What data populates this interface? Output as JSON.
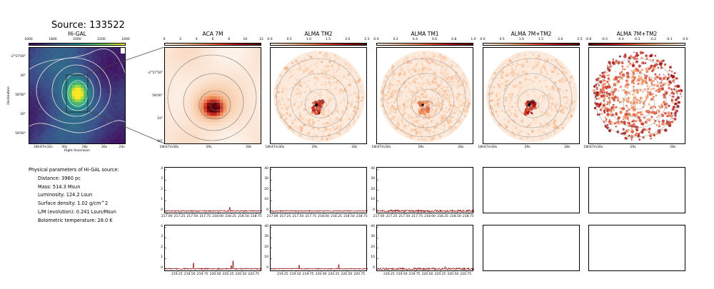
{
  "source_title": "Source: 133522",
  "colors": {
    "hot": [
      "#fdf2ea",
      "#f7c9a6",
      "#ee8c5a",
      "#d8412b",
      "#9c0f12",
      "#5a0008"
    ],
    "viridis": [
      "#440154",
      "#3b528b",
      "#21918c",
      "#5ec962",
      "#fde725"
    ],
    "contour": "#c8c8c8",
    "spectrum": "#8b0000"
  },
  "chart_data": [
    {
      "type": "heatmap",
      "name": "hi-gal",
      "title": "Hi-GAL",
      "colorbar_ticks": [
        "1600",
        "1800",
        "2000",
        "2200",
        "2400"
      ],
      "x_ticks": [
        "18h47m32s",
        "30s",
        "28s",
        "26s",
        "24s"
      ],
      "y_ticks": [
        "-2°57'00\"",
        "30\"",
        "58'00\"",
        "30\"",
        "59'00\""
      ],
      "xlabel": "Right Ascension",
      "ylabel": "Declination"
    },
    {
      "type": "heatmap",
      "name": "aca-7m",
      "title": "ACA 7M",
      "colorbar_ticks": [
        "0",
        "2",
        "4",
        "6",
        "8",
        "10",
        "12"
      ],
      "x_ticks": [
        "18h47m30s",
        "29s",
        "28s"
      ],
      "y_ticks": [
        "-2°57'50\"",
        "58'00\"",
        "10\"",
        "20\""
      ]
    },
    {
      "type": "heatmap",
      "name": "alma-tm2",
      "title": "ALMA TM2",
      "colorbar_ticks": [
        "0.0",
        "0.5",
        "1.0",
        "1.5",
        "2.0",
        "2.5"
      ],
      "x_ticks": [
        "18h47m30s",
        "29s",
        "28s"
      ]
    },
    {
      "type": "heatmap",
      "name": "alma-tm1",
      "title": "ALMA TM1",
      "colorbar_ticks": [
        "0.0",
        "0.2",
        "0.4",
        "0.6",
        "0.8",
        "1.0"
      ],
      "x_ticks": [
        "18h47m30s",
        "29s",
        "28s"
      ]
    },
    {
      "type": "heatmap",
      "name": "alma-7m-tm2",
      "title": "ALMA 7M+TM2",
      "colorbar_ticks": [
        "0.0",
        "0.5",
        "1.0",
        "1.5",
        "2.0",
        "2.5"
      ],
      "x_ticks": [
        "18h47m30s",
        "29s",
        "28s"
      ]
    },
    {
      "type": "heatmap",
      "name": "alma-7m-tm2-negative",
      "title": "ALMA 7M+TM2",
      "colorbar_ticks": [
        "-0.6",
        "-0.5",
        "-0.4",
        "-0.3",
        "-0.2",
        "-0.1",
        "0.0"
      ],
      "x_ticks": [
        "18h47m30s",
        "29s",
        "28s"
      ]
    },
    {
      "type": "line",
      "name": "spectrum-top-aca",
      "x_ticks": [
        "217.00",
        "217.25",
        "217.50",
        "217.75",
        "218.00",
        "218.25",
        "218.50",
        "218.75"
      ],
      "y_ticks": [
        "0",
        "1",
        "2",
        "3",
        "4"
      ],
      "xlim": [
        216.95,
        218.85
      ],
      "ylim": [
        -0.3,
        4.2
      ],
      "baseline": 0.0,
      "noise": 0.05,
      "peaks": [
        {
          "x": 218.22,
          "y": 0.35
        }
      ]
    },
    {
      "type": "line",
      "name": "spectrum-top-tm2",
      "x_ticks": [
        "217.00",
        "217.25",
        "217.50",
        "217.75",
        "218.00",
        "218.25",
        "218.50",
        "218.75"
      ],
      "y_ticks": [
        "0",
        "10",
        "20",
        "30",
        "40"
      ],
      "xlim": [
        216.95,
        218.85
      ],
      "ylim": [
        -3,
        42
      ],
      "baseline": 0.0,
      "noise": 0.4,
      "peaks": []
    },
    {
      "type": "line",
      "name": "spectrum-top-tm1",
      "x_ticks": [
        "217.00",
        "217.25",
        "217.50",
        "217.75",
        "218.00",
        "218.25",
        "218.50",
        "218.75"
      ],
      "y_ticks": [
        "0",
        "10",
        "20",
        "30",
        "40"
      ],
      "xlim": [
        216.95,
        218.85
      ],
      "ylim": [
        -3,
        42
      ],
      "baseline": 0.0,
      "noise": 0.9,
      "peaks": []
    },
    {
      "type": "line",
      "name": "spectrum-bottom-aca",
      "x_ticks": [
        "219.25",
        "219.50",
        "219.75",
        "220.00",
        "220.25",
        "220.50",
        "220.75"
      ],
      "y_ticks": [
        "0",
        "1",
        "2",
        "3",
        "4"
      ],
      "xlim": [
        219.0,
        220.9
      ],
      "ylim": [
        -0.3,
        4.2
      ],
      "baseline": 0.0,
      "noise": 0.05,
      "peaks": [
        {
          "x": 219.56,
          "y": 0.55
        },
        {
          "x": 220.33,
          "y": 0.75
        },
        {
          "x": 220.3,
          "y": 0.3
        }
      ]
    },
    {
      "type": "line",
      "name": "spectrum-bottom-tm2",
      "x_ticks": [
        "219.25",
        "219.50",
        "219.75",
        "220.00",
        "220.25",
        "220.50",
        "220.75"
      ],
      "y_ticks": [
        "0",
        "10",
        "20",
        "30",
        "40"
      ],
      "xlim": [
        219.0,
        220.9
      ],
      "ylim": [
        -3,
        42
      ],
      "baseline": 0.0,
      "noise": 0.4,
      "peaks": [
        {
          "x": 219.56,
          "y": 3.5
        },
        {
          "x": 220.33,
          "y": 4.0
        }
      ]
    },
    {
      "type": "line",
      "name": "spectrum-bottom-tm1",
      "x_ticks": [
        "219.25",
        "219.50",
        "219.75",
        "220.00",
        "220.25",
        "220.50",
        "220.75"
      ],
      "y_ticks": [
        "0",
        "10",
        "20",
        "30",
        "40"
      ],
      "xlim": [
        219.0,
        220.9
      ],
      "ylim": [
        -3,
        42
      ],
      "baseline": 0.0,
      "noise": 0.9,
      "peaks": [
        {
          "x": 220.33,
          "y": 2.0
        }
      ]
    }
  ],
  "params": {
    "heading": "Physical parameters of Hi-GAL source:",
    "items": [
      "Distance: 3960 pc",
      "Mass: 514.3 Msun",
      "Luminosity: 124.2 Lsun",
      "Surface density: 1.02 g/cm^2",
      "L/M (evolution): 0.241 Lsun/Msun",
      "Bolometric temperature: 28.0 K"
    ]
  }
}
